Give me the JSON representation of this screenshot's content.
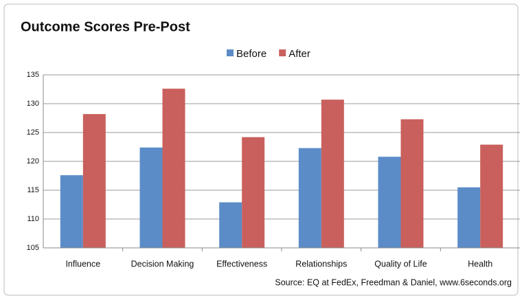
{
  "chart_data": {
    "type": "bar",
    "title": "Outcome Scores Pre-Post",
    "categories": [
      "Influence",
      "Decision Making",
      "Effectiveness",
      "Relationships",
      "Quality of Life",
      "Health"
    ],
    "series": [
      {
        "name": "Before",
        "color": "#5b8cc8",
        "values": [
          117.6,
          122.4,
          112.9,
          122.3,
          120.8,
          115.5
        ]
      },
      {
        "name": "After",
        "color": "#c9605d",
        "values": [
          128.2,
          132.6,
          124.2,
          130.7,
          127.3,
          122.9
        ]
      }
    ],
    "ylim": [
      105,
      135
    ],
    "yticks": [
      105,
      110,
      115,
      120,
      125,
      130,
      135
    ],
    "grid": true,
    "legend": "top",
    "annotation": "Source: EQ at FedEx, Freedman & Daniel, www.6seconds.org"
  }
}
